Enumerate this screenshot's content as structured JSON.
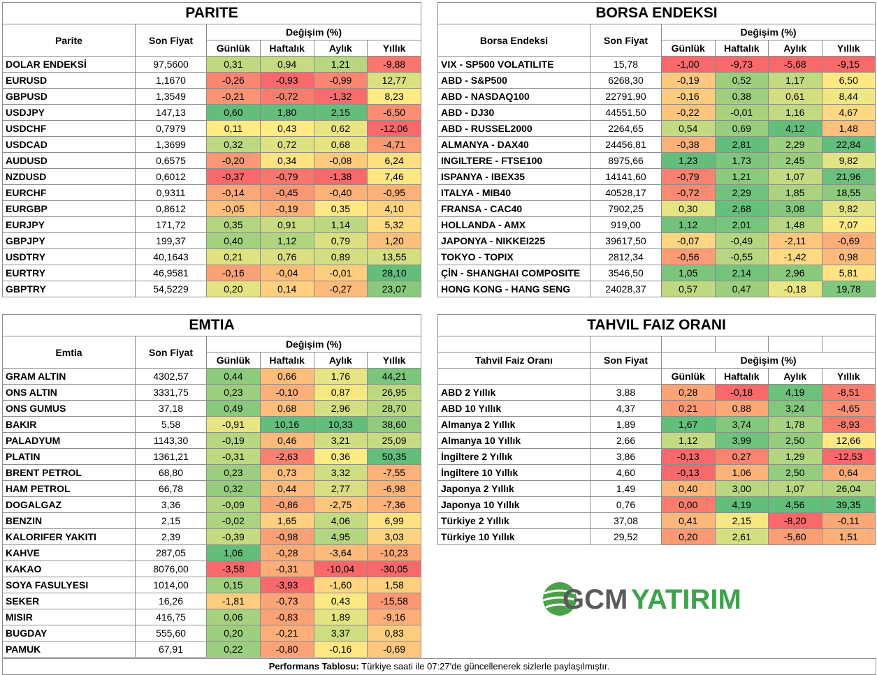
{
  "colors": {
    "red": "#f8696b",
    "orange": "#fca676",
    "yellow": "#ffeb84",
    "lightgreen": "#c7dc81",
    "green": "#63be7b"
  },
  "parite": {
    "title": "PARITE",
    "headers": {
      "name": "Parite",
      "price": "Son Fiyat",
      "change": "Değişim (%)",
      "d": "Günlük",
      "w": "Haftalık",
      "m": "Aylık",
      "y": "Yıllık"
    },
    "rows": [
      [
        "DOLAR ENDEKSİ",
        "97,5600",
        "0,31",
        "0,94",
        "1,21",
        "-9,88"
      ],
      [
        "EURUSD",
        "1,1670",
        "-0,26",
        "-0,93",
        "-0,99",
        "12,77"
      ],
      [
        "GBPUSD",
        "1,3549",
        "-0,21",
        "-0,72",
        "-1,32",
        "8,23"
      ],
      [
        "USDJPY",
        "147,13",
        "0,60",
        "1,80",
        "2,15",
        "-6,50"
      ],
      [
        "USDCHF",
        "0,7979",
        "0,11",
        "0,43",
        "0,62",
        "-12,06"
      ],
      [
        "USDCAD",
        "1,3699",
        "0,32",
        "0,72",
        "0,68",
        "-4,71"
      ],
      [
        "AUDUSD",
        "0,6575",
        "-0,20",
        "0,34",
        "-0,08",
        "6,24"
      ],
      [
        "NZDUSD",
        "0,6012",
        "-0,37",
        "-0,79",
        "-1,38",
        "7,46"
      ],
      [
        "EURCHF",
        "0,9311",
        "-0,14",
        "-0,45",
        "-0,40",
        "-0,95"
      ],
      [
        "EURGBP",
        "0,8612",
        "-0,05",
        "-0,19",
        "0,35",
        "4,10"
      ],
      [
        "EURJPY",
        "171,72",
        "0,35",
        "0,91",
        "1,14",
        "5,32"
      ],
      [
        "GBPJPY",
        "199,37",
        "0,40",
        "1,12",
        "0,79",
        "1,20"
      ],
      [
        "USDTRY",
        "40,1643",
        "0,21",
        "0,76",
        "0,89",
        "13,55"
      ],
      [
        "EURTRY",
        "46,9581",
        "-0,16",
        "-0,04",
        "-0,01",
        "28,10"
      ],
      [
        "GBPTRY",
        "54,5229",
        "0,20",
        "0,14",
        "-0,27",
        "23,07"
      ]
    ]
  },
  "borsa": {
    "title": "BORSA ENDEKSI",
    "headers": {
      "name": "Borsa Endeksi",
      "price": "Son Fiyat",
      "change": "Değişim (%)",
      "d": "Günlük",
      "w": "Haftalık",
      "m": "Aylık",
      "y": "Yıllık"
    },
    "rows": [
      [
        "VIX  - SP500 VOLATILITE",
        "15,78",
        "-1,00",
        "-9,73",
        "-5,68",
        "-9,15"
      ],
      [
        "ABD - S&P500",
        "6268,30",
        "-0,19",
        "0,52",
        "1,17",
        "6,50"
      ],
      [
        "ABD - NASDAQ100",
        "22791,90",
        "-0,16",
        "0,38",
        "0,61",
        "8,44"
      ],
      [
        "ABD - DJ30",
        "44551,50",
        "-0,22",
        "-0,01",
        "1,16",
        "4,67"
      ],
      [
        "ABD - RUSSEL2000",
        "2264,65",
        "0,54",
        "0,69",
        "4,12",
        "1,48"
      ],
      [
        "ALMANYA - DAX40",
        "24456,81",
        "-0,38",
        "2,81",
        "2,29",
        "22,84"
      ],
      [
        "INGILTERE - FTSE100",
        "8975,66",
        "1,23",
        "1,73",
        "2,45",
        "9,82"
      ],
      [
        "ISPANYA - IBEX35",
        "14141,60",
        "-0,79",
        "1,21",
        "1,07",
        "21,96"
      ],
      [
        "ITALYA - MIB40",
        "40528,17",
        "-0,72",
        "2,29",
        "1,85",
        "18,55"
      ],
      [
        "FRANSA - CAC40",
        "7902,25",
        "0,30",
        "2,68",
        "3,08",
        "9,82"
      ],
      [
        "HOLLANDA - AMX",
        "919,00",
        "1,12",
        "2,01",
        "1,48",
        "7,07"
      ],
      [
        "JAPONYA - NIKKEI225",
        "39617,50",
        "-0,07",
        "-0,49",
        "-2,11",
        "-0,69"
      ],
      [
        "TOKYO - TOPIX",
        "2812,34",
        "-0,56",
        "-0,55",
        "-1,42",
        "0,98"
      ],
      [
        "ÇİN - SHANGHAI COMPOSITE",
        "3546,50",
        "1,05",
        "2,14",
        "2,96",
        "5,81"
      ],
      [
        "HONG KONG - HANG SENG",
        "24028,37",
        "0,57",
        "0,47",
        "-0,18",
        "19,78"
      ]
    ]
  },
  "emtia": {
    "title": "EMTIA",
    "headers": {
      "name": "Emtia",
      "price": "Son Fiyat",
      "change": "Değişim (%)",
      "d": "Günlük",
      "w": "Haftalık",
      "m": "Aylık",
      "y": "Yıllık"
    },
    "rows": [
      [
        "GRAM ALTIN",
        "4302,57",
        "0,44",
        "0,66",
        "1,76",
        "44,21"
      ],
      [
        "ONS ALTIN",
        "3331,75",
        "0,23",
        "-0,10",
        "0,87",
        "26,95"
      ],
      [
        "ONS GUMUS",
        "37,18",
        "0,49",
        "0,68",
        "2,96",
        "28,70"
      ],
      [
        "BAKIR",
        "5,58",
        "-0,91",
        "10,16",
        "10,33",
        "38,60"
      ],
      [
        "PALADYUM",
        "1143,30",
        "-0,19",
        "0,46",
        "3,21",
        "25,09"
      ],
      [
        "PLATIN",
        "1361,21",
        "-0,31",
        "-2,63",
        "0,36",
        "50,35"
      ],
      [
        "BRENT PETROL",
        "68,80",
        "0,23",
        "0,73",
        "3,32",
        "-7,55"
      ],
      [
        "HAM PETROL",
        "66,78",
        "0,32",
        "0,44",
        "2,77",
        "-6,98"
      ],
      [
        "DOGALGAZ",
        "3,36",
        "-0,09",
        "-0,86",
        "-2,75",
        "-7,36"
      ],
      [
        "BENZIN",
        "2,15",
        "-0,02",
        "1,65",
        "4,06",
        "6,99"
      ],
      [
        "KALORIFER YAKITI",
        "2,39",
        "-0,39",
        "-0,98",
        "4,95",
        "3,03"
      ],
      [
        "KAHVE",
        "287,05",
        "1,06",
        "-0,28",
        "-3,64",
        "-10,23"
      ],
      [
        "KAKAO",
        "8076,00",
        "-3,58",
        "-0,31",
        "-10,04",
        "-30,05"
      ],
      [
        "SOYA FASULYESI",
        "1014,00",
        "0,15",
        "-3,93",
        "-1,60",
        "1,58"
      ],
      [
        "SEKER",
        "16,26",
        "-1,81",
        "-0,73",
        "0,43",
        "-15,58"
      ],
      [
        "MISIR",
        "416,75",
        "0,06",
        "-0,83",
        "1,89",
        "-9,16"
      ],
      [
        "BUGDAY",
        "555,60",
        "0,20",
        "-0,21",
        "3,37",
        "0,83"
      ],
      [
        "PAMUK",
        "67,91",
        "0,22",
        "-0,80",
        "-0,16",
        "-0,69"
      ]
    ]
  },
  "tahvil": {
    "title": "TAHVIL FAIZ ORANI",
    "headers": {
      "name": "Tahvil Faiz Oranı",
      "price": "Son Fiyat",
      "change": "Değişim (%)",
      "d": "Günlük",
      "w": "Haftalık",
      "m": "Aylık",
      "y": "Yıllık"
    },
    "rows": [
      [
        "ABD 2 Yıllık",
        "3,88",
        "0,28",
        "-0,18",
        "4,19",
        "-8,51"
      ],
      [
        "ABD 10 Yıllık",
        "4,37",
        "0,21",
        "0,88",
        "3,24",
        "-4,65"
      ],
      [
        "Almanya 2 Yıllık",
        "1,89",
        "1,67",
        "3,74",
        "1,78",
        "-8,93"
      ],
      [
        "Almanya 10 Yıllık",
        "2,66",
        "1,12",
        "3,99",
        "2,50",
        "12,66"
      ],
      [
        "İngiltere 2 Yıllık",
        "3,86",
        "-0,13",
        "0,27",
        "1,29",
        "-12,53"
      ],
      [
        "İngiltere 10 Yıllık",
        "4,60",
        "-0,13",
        "1,06",
        "2,50",
        "0,64"
      ],
      [
        "Japonya 2 Yıllık",
        "1,49",
        "0,40",
        "3,00",
        "1,07",
        "26,04"
      ],
      [
        "Japonya 10 Yıllık",
        "0,76",
        "0,00",
        "4,19",
        "4,56",
        "39,35"
      ],
      [
        "Türkiye 2 Yıllık",
        "37,08",
        "0,41",
        "2,15",
        "-8,20",
        "-0,11"
      ],
      [
        "Türkiye 10 Yıllık",
        "29,52",
        "0,20",
        "2,61",
        "-5,60",
        "1,51"
      ]
    ]
  },
  "logo": {
    "text_gcm": "GCM",
    "text_yatirim": "YATIRIM"
  },
  "footer": {
    "bold": "Performans Tablosu:",
    "text": " Türkiye saati ile 07:27'de güncellenerek sizlerle paylaşılmıştır."
  }
}
